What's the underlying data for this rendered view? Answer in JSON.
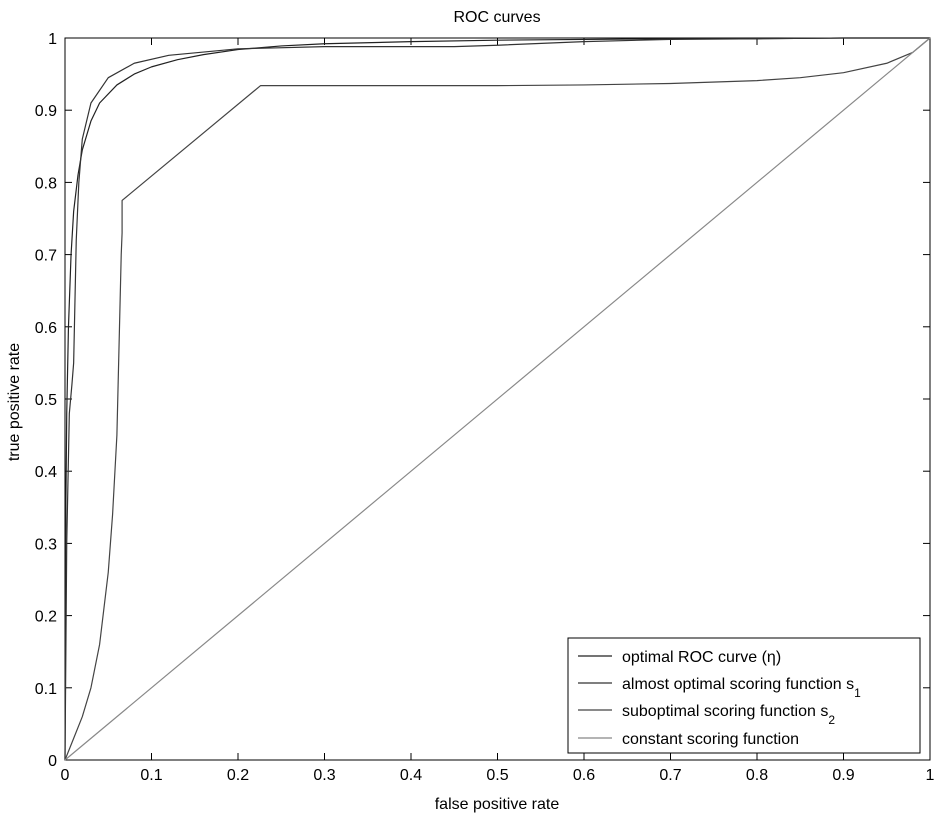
{
  "chart_data": {
    "type": "line",
    "title": "ROC curves",
    "xlabel": "false positive rate",
    "ylabel": "true positive rate",
    "xlim": [
      0,
      1
    ],
    "ylim": [
      0,
      1
    ],
    "xticks": [
      0,
      0.1,
      0.2,
      0.3,
      0.4,
      0.5,
      0.6,
      0.7,
      0.8,
      0.9,
      1
    ],
    "yticks": [
      0,
      0.1,
      0.2,
      0.3,
      0.4,
      0.5,
      0.6,
      0.7,
      0.8,
      0.9,
      1
    ],
    "xtick_labels": [
      "0",
      "0.1",
      "0.2",
      "0.3",
      "0.4",
      "0.5",
      "0.6",
      "0.7",
      "0.8",
      "0.9",
      "1"
    ],
    "ytick_labels": [
      "0",
      "0.1",
      "0.2",
      "0.3",
      "0.4",
      "0.5",
      "0.6",
      "0.7",
      "0.8",
      "0.9",
      "1"
    ],
    "grid": false,
    "legend_position": "bottom-right",
    "series": [
      {
        "name": "optimal ROC curve (η)",
        "color": "#222222",
        "x": [
          0,
          0.001,
          0.002,
          0.004,
          0.007,
          0.01,
          0.015,
          0.02,
          0.03,
          0.04,
          0.06,
          0.08,
          0.1,
          0.13,
          0.16,
          0.2,
          0.25,
          0.3,
          0.4,
          0.5,
          0.6,
          0.7,
          0.8,
          0.9,
          1
        ],
        "y": [
          0,
          0.35,
          0.48,
          0.6,
          0.7,
          0.76,
          0.81,
          0.845,
          0.885,
          0.91,
          0.935,
          0.95,
          0.96,
          0.97,
          0.977,
          0.984,
          0.989,
          0.992,
          0.995,
          0.997,
          0.998,
          0.999,
          0.999,
          1,
          1
        ]
      },
      {
        "name": "almost optimal scoring function s_1",
        "name_main": "almost optimal scoring function s",
        "name_sub": "1",
        "color": "#333333",
        "x": [
          0,
          0.002,
          0.005,
          0.008,
          0.01,
          0.013,
          0.016,
          0.02,
          0.03,
          0.05,
          0.08,
          0.12,
          0.2,
          0.3,
          0.4,
          0.45,
          0.5,
          0.6,
          0.7,
          0.8,
          0.9,
          1
        ],
        "y": [
          0,
          0.3,
          0.48,
          0.52,
          0.55,
          0.72,
          0.8,
          0.86,
          0.91,
          0.945,
          0.965,
          0.976,
          0.985,
          0.988,
          0.988,
          0.988,
          0.99,
          0.995,
          0.998,
          0.999,
          1,
          1
        ]
      },
      {
        "name": "suboptimal scoring function s_2",
        "name_main": "suboptimal scoring function s",
        "name_sub": "2",
        "color": "#444444",
        "x": [
          0,
          0.01,
          0.02,
          0.03,
          0.04,
          0.05,
          0.055,
          0.06,
          0.063,
          0.065,
          0.066,
          0.066,
          0.226,
          0.3,
          0.4,
          0.5,
          0.6,
          0.7,
          0.8,
          0.85,
          0.9,
          0.95,
          0.98,
          1
        ],
        "y": [
          0,
          0.03,
          0.06,
          0.1,
          0.16,
          0.26,
          0.34,
          0.45,
          0.6,
          0.7,
          0.73,
          0.775,
          0.934,
          0.934,
          0.934,
          0.934,
          0.935,
          0.937,
          0.941,
          0.945,
          0.952,
          0.965,
          0.98,
          1
        ]
      },
      {
        "name": "constant scoring function",
        "color": "#888888",
        "x": [
          0,
          1
        ],
        "y": [
          0,
          1
        ]
      }
    ]
  }
}
